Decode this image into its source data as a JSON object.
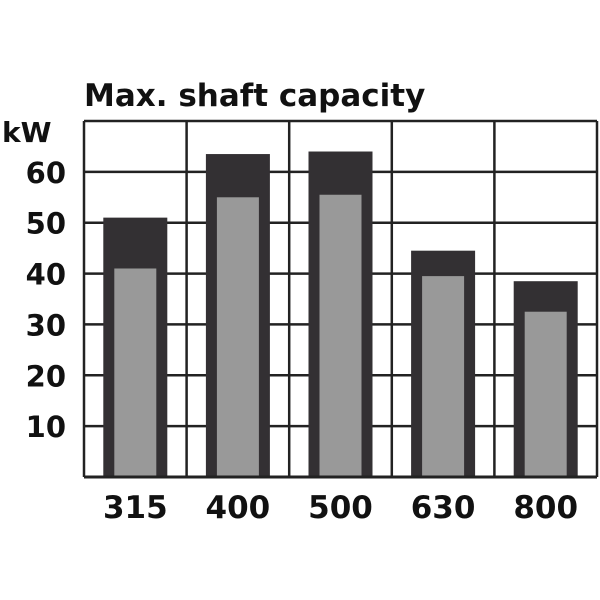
{
  "chart_data": {
    "type": "bar",
    "title": "Max. shaft capacity",
    "ylabel": "kW",
    "xlabel": "",
    "categories": [
      "315",
      "400",
      "500",
      "630",
      "800"
    ],
    "series": [
      {
        "values": [
          51,
          63.5,
          64,
          44.5,
          38.5
        ]
      },
      {
        "values": [
          41,
          55,
          55.5,
          39.5,
          32.5
        ]
      }
    ],
    "ylim": [
      0,
      70
    ],
    "yticks": [
      10,
      20,
      30,
      40,
      50,
      60
    ],
    "ytick_labels": [
      "10",
      "20",
      "30",
      "40",
      "50",
      "60"
    ],
    "grid": true,
    "colors": {
      "outer_bar": "#333033",
      "inner_bar": "#999999",
      "grid": "#222222",
      "text": "#111111"
    }
  }
}
